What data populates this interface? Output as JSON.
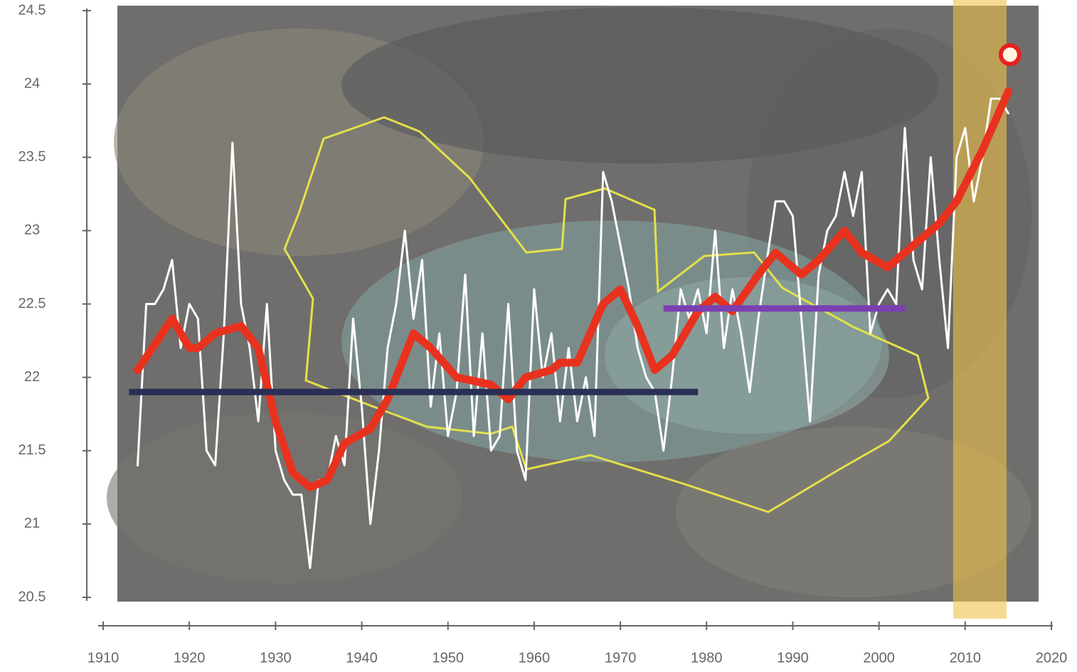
{
  "chart_data": {
    "type": "line",
    "xlim": [
      1910,
      2020
    ],
    "xticks": [
      1910,
      1920,
      1930,
      1940,
      1950,
      1960,
      1970,
      1980,
      1990,
      2000,
      2010,
      2020
    ],
    "ylim": [
      20.5,
      24.5
    ],
    "yticks": [
      20.5,
      21,
      21.5,
      22,
      22.5,
      23,
      23.5,
      24,
      24.5
    ],
    "series": [
      {
        "color": "#ffffff",
        "width": 3,
        "x": [
          1914,
          1915,
          1916,
          1917,
          1918,
          1919,
          1920,
          1921,
          1922,
          1923,
          1924,
          1925,
          1926,
          1927,
          1928,
          1929,
          1930,
          1931,
          1932,
          1933,
          1934,
          1935,
          1936,
          1937,
          1938,
          1939,
          1940,
          1941,
          1942,
          1943,
          1944,
          1945,
          1946,
          1947,
          1948,
          1949,
          1950,
          1951,
          1952,
          1953,
          1954,
          1955,
          1956,
          1957,
          1958,
          1959,
          1960,
          1961,
          1962,
          1963,
          1964,
          1965,
          1966,
          1967,
          1968,
          1969,
          1970,
          1971,
          1972,
          1973,
          1974,
          1975,
          1976,
          1977,
          1978,
          1979,
          1980,
          1981,
          1982,
          1983,
          1984,
          1985,
          1986,
          1987,
          1988,
          1989,
          1990,
          1991,
          1992,
          1993,
          1994,
          1995,
          1996,
          1997,
          1998,
          1999,
          2000,
          2001,
          2002,
          2003,
          2004,
          2005,
          2006,
          2007,
          2008,
          2009,
          2010,
          2011,
          2012,
          2013,
          2014,
          2015
        ],
        "values": [
          21.4,
          22.5,
          22.5,
          22.6,
          22.8,
          22.2,
          22.5,
          22.4,
          21.5,
          21.4,
          22.3,
          23.6,
          22.5,
          22.2,
          21.7,
          22.5,
          21.5,
          21.3,
          21.2,
          21.2,
          20.7,
          21.3,
          21.3,
          21.6,
          21.4,
          22.4,
          21.8,
          21.0,
          21.5,
          22.2,
          22.5,
          23.0,
          22.4,
          22.8,
          21.8,
          22.3,
          21.6,
          21.9,
          22.7,
          21.6,
          22.3,
          21.5,
          21.6,
          22.5,
          21.5,
          21.3,
          22.6,
          22.0,
          22.3,
          21.7,
          22.2,
          21.7,
          22.0,
          21.6,
          23.4,
          23.2,
          22.9,
          22.6,
          22.2,
          22.0,
          21.9,
          21.5,
          22.0,
          22.6,
          22.4,
          22.6,
          22.3,
          23.0,
          22.2,
          22.6,
          22.3,
          21.9,
          22.4,
          22.8,
          23.2,
          23.2,
          23.1,
          22.4,
          21.7,
          22.7,
          23.0,
          23.1,
          23.4,
          23.1,
          23.4,
          22.3,
          22.5,
          22.6,
          22.5,
          23.7,
          22.8,
          22.6,
          23.5,
          22.8,
          22.2,
          23.5,
          23.7,
          23.2,
          23.5,
          23.9,
          23.9,
          23.8
        ]
      },
      {
        "color": "#e8321e",
        "width": 11,
        "x": [
          1914,
          1918,
          1920,
          1921,
          1923,
          1926,
          1928,
          1930,
          1932,
          1934,
          1936,
          1938,
          1941,
          1943,
          1946,
          1948,
          1951,
          1955,
          1957,
          1959,
          1962,
          1963,
          1965,
          1968,
          1970,
          1972,
          1974,
          1976,
          1979,
          1981,
          1983,
          1986,
          1988,
          1991,
          1993,
          1996,
          1998,
          2001,
          2004,
          2007,
          2009,
          2012,
          2015
        ],
        "values": [
          22.05,
          22.4,
          22.2,
          22.2,
          22.3,
          22.35,
          22.2,
          21.7,
          21.35,
          21.25,
          21.3,
          21.55,
          21.65,
          21.85,
          22.3,
          22.2,
          22.0,
          21.95,
          21.85,
          22.0,
          22.05,
          22.1,
          22.1,
          22.5,
          22.6,
          22.35,
          22.05,
          22.15,
          22.45,
          22.55,
          22.45,
          22.7,
          22.85,
          22.7,
          22.8,
          23.0,
          22.85,
          22.75,
          22.9,
          23.05,
          23.2,
          23.55,
          23.95
        ]
      }
    ],
    "reference_lines": [
      {
        "x": [
          1913,
          1979
        ],
        "y": 21.9,
        "color": "#2a2f55"
      },
      {
        "x": [
          1975,
          2003
        ],
        "y": 22.47,
        "color": "#7a3fb0"
      }
    ],
    "highlight": {
      "x": [
        2008.6,
        2014.8
      ],
      "color": "#f2c24a"
    },
    "marker": {
      "x": 2015.2,
      "y": 24.2,
      "color": "#e8201e"
    }
  }
}
